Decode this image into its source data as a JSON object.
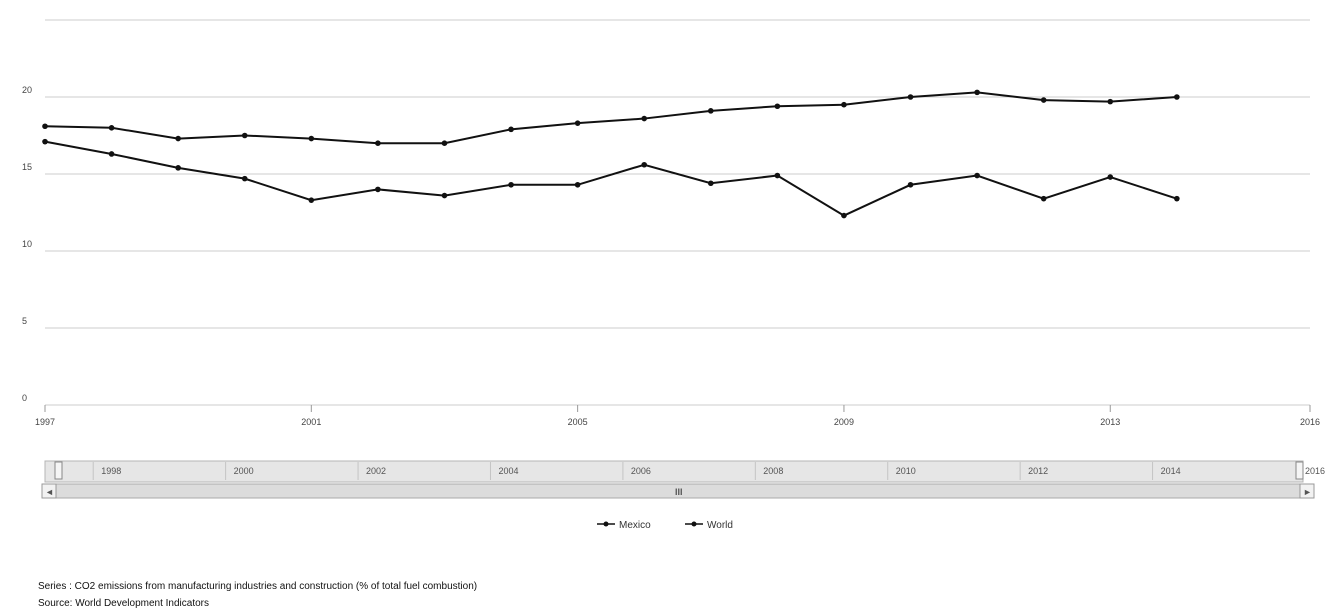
{
  "chart_data": {
    "type": "line",
    "x": [
      1997,
      1998,
      1999,
      2000,
      2001,
      2002,
      2003,
      2004,
      2005,
      2006,
      2007,
      2008,
      2009,
      2010,
      2011,
      2012,
      2013,
      2014
    ],
    "series": [
      {
        "name": "Mexico",
        "values": [
          17.1,
          16.3,
          15.4,
          14.7,
          13.3,
          14.0,
          13.6,
          14.3,
          14.3,
          15.6,
          14.4,
          14.9,
          12.3,
          14.3,
          14.9,
          13.4,
          14.8,
          13.4
        ]
      },
      {
        "name": "World",
        "values": [
          18.1,
          18.0,
          17.3,
          17.5,
          17.3,
          17.0,
          17.0,
          17.9,
          18.3,
          18.6,
          19.1,
          19.4,
          19.5,
          20.0,
          20.3,
          19.8,
          19.7,
          20.0
        ]
      }
    ],
    "ylim": [
      0,
      25
    ],
    "yticks": [
      "0",
      "5",
      "10",
      "15",
      "20"
    ],
    "xticks": [
      "1997",
      "2001",
      "2005",
      "2009",
      "2013",
      "2016"
    ],
    "grid": true,
    "legend_position": "bottom"
  },
  "navigator": {
    "labels": [
      "1998",
      "2000",
      "2002",
      "2004",
      "2006",
      "2008",
      "2010",
      "2012",
      "2014",
      "2016"
    ],
    "scroll_left": "◄",
    "scroll_right": "►",
    "scroll_thumb": "III"
  },
  "legend": {
    "items": [
      "Mexico",
      "World"
    ]
  },
  "footer": {
    "series": "Series : CO2 emissions from manufacturing industries and construction (% of total fuel combustion)",
    "source": "Source: World Development Indicators"
  },
  "colors": {
    "line": "#111111",
    "grid": "#cccccc",
    "navigator_bg": "#e6e6e6"
  }
}
